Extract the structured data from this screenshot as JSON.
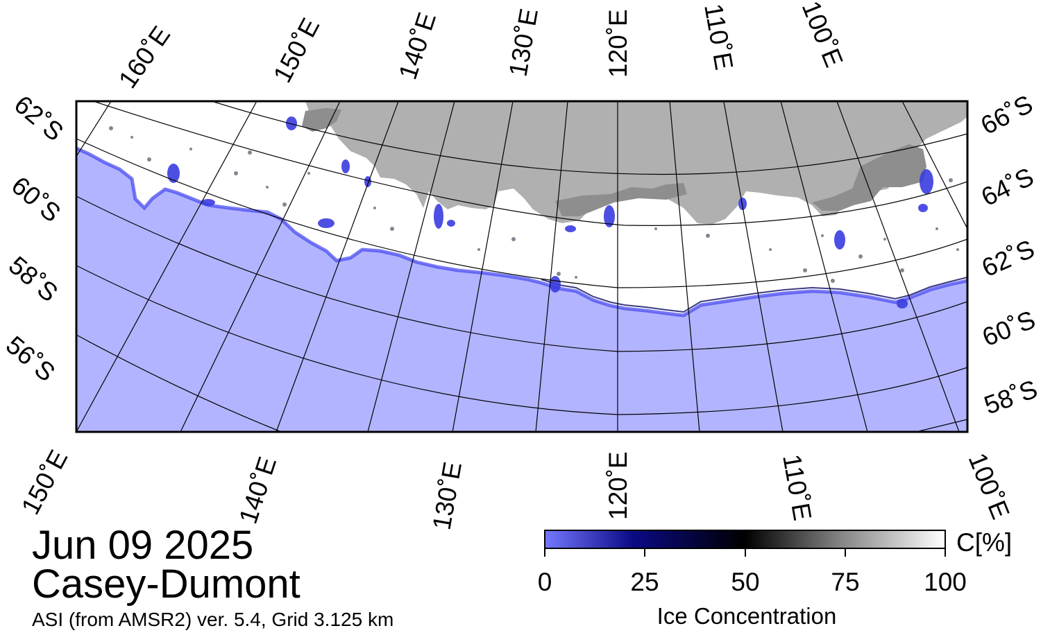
{
  "map": {
    "title_date": "Jun 09 2025",
    "region": "Casey-Dumont",
    "source": "ASI (from AMSR2) ver. 5.4,  Grid 3.125 km",
    "top_lon_labels": [
      "160˚E",
      "150˚E",
      "140˚E",
      "130˚E",
      "120˚E",
      "110˚E",
      "100˚E"
    ],
    "bottom_lon_labels": [
      "150˚E",
      "140˚E",
      "130˚E",
      "120˚E",
      "110˚E",
      "100˚E"
    ],
    "left_lat_labels": [
      "62˚S",
      "60˚S",
      "58˚S",
      "56˚S"
    ],
    "right_lat_labels": [
      "66˚S",
      "64˚S",
      "62˚S",
      "60˚S",
      "58˚S"
    ],
    "colors": {
      "open_water": "#b2b4ff",
      "ice_high": "#ffffff",
      "land": "#b0b0b0",
      "ice_shelf": "#8e8e8e",
      "low_ice": "#5050ff",
      "graticule": "#000000"
    }
  },
  "colorbar": {
    "ticks": [
      "0",
      "25",
      "50",
      "75",
      "100"
    ],
    "unit": "C[%]",
    "label": "Ice Concentration",
    "stops": [
      {
        "value": 0,
        "color": "#7478ff"
      },
      {
        "value": 22,
        "color": "#0a0a85"
      },
      {
        "value": 50,
        "color": "#000000"
      },
      {
        "value": 75,
        "color": "#8a8a8a"
      },
      {
        "value": 100,
        "color": "#ffffff"
      }
    ]
  }
}
